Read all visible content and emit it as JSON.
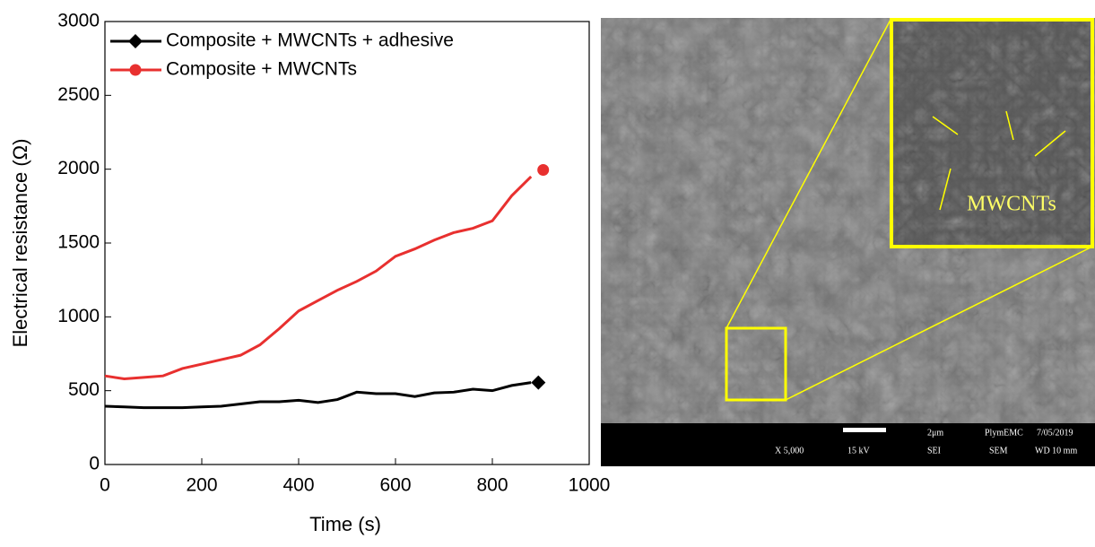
{
  "chart_data": {
    "type": "line",
    "xlabel": "Time (s)",
    "ylabel": "Electrical resistance (Ω)",
    "x": [
      0,
      40,
      80,
      120,
      160,
      200,
      240,
      280,
      320,
      360,
      400,
      440,
      480,
      520,
      560,
      600,
      640,
      680,
      720,
      760,
      800,
      840,
      880
    ],
    "series": [
      {
        "name": "Composite + MWCNTs + adhesive",
        "color": "#000000",
        "marker": "diamond",
        "values": [
          395,
          390,
          385,
          385,
          385,
          390,
          395,
          410,
          425,
          425,
          435,
          420,
          440,
          490,
          480,
          480,
          460,
          485,
          490,
          510,
          500,
          535,
          555
        ],
        "marker_x": 895,
        "marker_value": 555
      },
      {
        "name": "Composite + MWCNTs",
        "color": "#e8302f",
        "marker": "circle",
        "values": [
          600,
          580,
          590,
          600,
          650,
          680,
          710,
          740,
          810,
          920,
          1040,
          1110,
          1180,
          1240,
          1310,
          1410,
          1460,
          1520,
          1570,
          1600,
          1650,
          1820,
          1950
        ],
        "marker_x": 905,
        "marker_value": 1995
      }
    ],
    "xlim": [
      0,
      1000
    ],
    "xticks": [
      0,
      200,
      400,
      600,
      800,
      1000
    ],
    "ylim": [
      0,
      3000
    ],
    "yticks": [
      0,
      500,
      1000,
      1500,
      2000,
      2500,
      3000
    ],
    "legend": "upper left"
  },
  "sem_image": {
    "inset_label": "MWCNTs",
    "magnification": "X 5,000",
    "voltage": "15 kV",
    "scale": "2μm",
    "detector": "SEI",
    "lab": "PlymEMC",
    "instrument": "SEM",
    "date": "7/05/2019",
    "working_distance": "WD 10 mm"
  }
}
